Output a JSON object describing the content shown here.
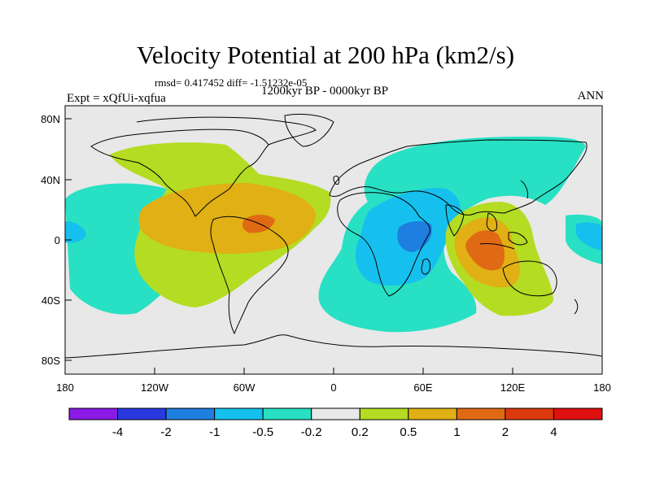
{
  "title": "Velocity Potential at 200 hPa (km2/s)",
  "stats": "rmsd= 0.417452 diff= -1.51232e-05",
  "experiment": "Expt = xQfUi-xqfua",
  "period": "1200kyr BP - 0000kyr BP",
  "season": "ANN",
  "map": {
    "lat_ticks": [
      "80N",
      "40N",
      "0",
      "40S",
      "80S"
    ],
    "lon_ticks": [
      "180",
      "120W",
      "60W",
      "0",
      "60E",
      "120E",
      "180"
    ]
  },
  "colorbar": {
    "labels": [
      "-4",
      "-2",
      "-1",
      "-0.5",
      "-0.2",
      "0.2",
      "0.5",
      "1",
      "2",
      "4"
    ],
    "colors": [
      "#8a1ae6",
      "#2a38e0",
      "#1e7fe0",
      "#16c0ee",
      "#28e0c4",
      "#e8e8e8",
      "#b4dc22",
      "#e0b014",
      "#e06a14",
      "#dc3a0e",
      "#e01010"
    ]
  }
}
